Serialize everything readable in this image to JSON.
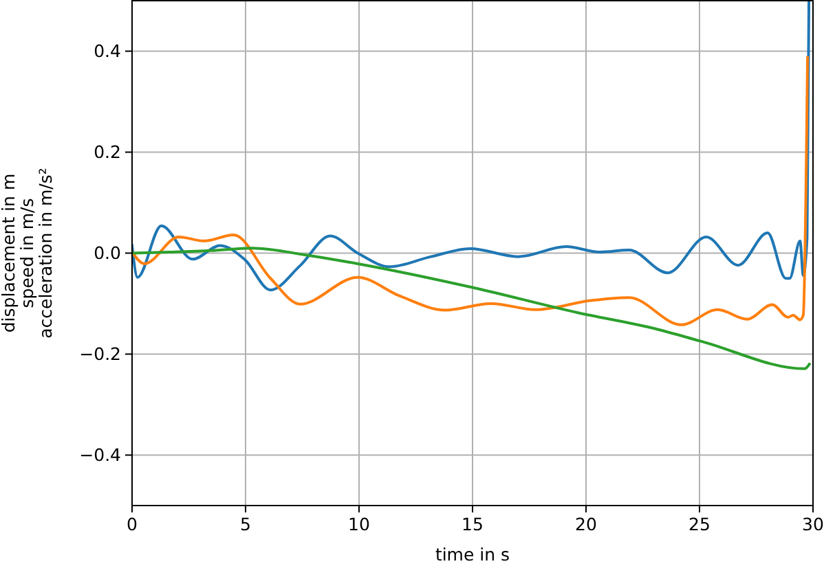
{
  "chart_data": {
    "type": "line",
    "xlabel": "time in s",
    "ylabel": "displacement in m\nspeed in m/s\nacceleration in m/s²",
    "xlim": [
      0,
      30
    ],
    "xticks": [
      0,
      5,
      10,
      15,
      20,
      25,
      30
    ],
    "ylim": [
      -0.5,
      0.5
    ],
    "yticks": [
      {
        "value": -0.4,
        "label": "−0.4"
      },
      {
        "value": -0.2,
        "label": "−0.2"
      },
      {
        "value": 0,
        "label": "0.0"
      },
      0.2,
      0.4
    ],
    "grid": true,
    "line_style": "solid",
    "series": [
      {
        "color": "#1f77b4",
        "x": [
          0,
          0.24,
          1.29,
          2.67,
          3.88,
          4.97,
          6.1,
          7.4,
          8.73,
          9.94,
          11.35,
          13.17,
          14.9,
          17.0,
          19.13,
          20.6,
          21.9,
          23.6,
          25.3,
          26.7,
          28.0,
          28.8,
          28.97,
          29.43,
          29.57,
          29.74,
          29.82
        ],
        "values": [
          0.015,
          -0.048,
          0.054,
          -0.012,
          0.015,
          -0.013,
          -0.073,
          -0.025,
          0.034,
          0,
          -0.027,
          -0.007,
          0.009,
          -0.007,
          0.013,
          0.002,
          0.006,
          -0.039,
          0.032,
          -0.024,
          0.04,
          -0.05,
          -0.05,
          0.024,
          -0.044,
          0.03,
          0.5
        ]
      },
      {
        "color": "#ff7f0e",
        "x": [
          0,
          0.55,
          2.06,
          3.17,
          4.48,
          6.1,
          7.4,
          9.94,
          11.8,
          13.8,
          15.8,
          17.8,
          20.2,
          21.9,
          24.2,
          25.8,
          27.1,
          28.2,
          28.9,
          29.13,
          29.43,
          29.57,
          29.76
        ],
        "values": [
          0.002,
          -0.021,
          0.032,
          0.024,
          0.036,
          -0.05,
          -0.101,
          -0.048,
          -0.085,
          -0.113,
          -0.1,
          -0.112,
          -0.094,
          -0.088,
          -0.142,
          -0.112,
          -0.131,
          -0.102,
          -0.127,
          -0.123,
          -0.132,
          -0.123,
          0.387
        ]
      },
      {
        "color": "#2ca02c",
        "x": [
          0,
          1.65,
          3.46,
          5.3,
          7.7,
          9.94,
          15,
          19.64,
          23.07,
          25.1,
          29.64,
          29.84
        ],
        "values": [
          0,
          0.002,
          0.005,
          0.01,
          -0.004,
          -0.021,
          -0.068,
          -0.118,
          -0.15,
          -0.175,
          -0.229,
          -0.22
        ]
      }
    ]
  }
}
